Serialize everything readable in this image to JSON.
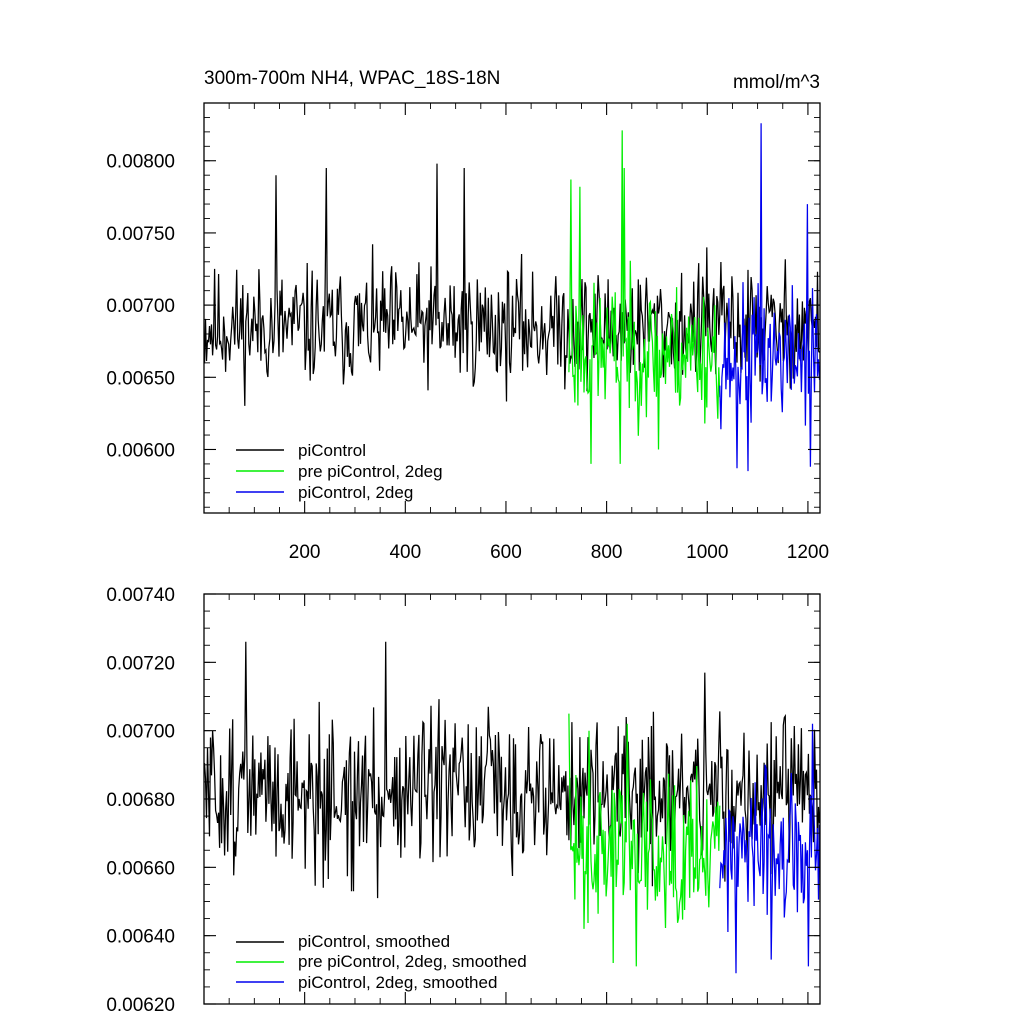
{
  "chart_data": [
    {
      "type": "line",
      "title": "300m-700m NH4, WPAC_18S-18N",
      "units": "mmol/m^3",
      "xlim": [
        0,
        1224
      ],
      "ylim": [
        0.00556,
        0.0084
      ],
      "x_ticks": [
        200,
        400,
        600,
        800,
        1000,
        1200
      ],
      "x_tick_labels": [
        "200",
        "400",
        "600",
        "800",
        "1000",
        "1200"
      ],
      "y_ticks": [
        0.006,
        0.0065,
        0.007,
        0.0075,
        0.008
      ],
      "y_tick_labels": [
        "0.00600",
        "0.00650",
        "0.00700",
        "0.00750",
        "0.00800"
      ],
      "legend": "bottom-left",
      "series": [
        {
          "name": "piControl",
          "color": "#000000",
          "x_range": [
            1,
            1224
          ],
          "mean": 0.00685,
          "amp": 0.00032,
          "seed": 11,
          "peaks": [
            [
              143,
              0.0079
            ],
            [
              243,
              0.00795
            ],
            [
              463,
              0.00798
            ],
            [
              518,
              0.00795
            ],
            [
              700,
              0.0072
            ],
            [
              1000,
              0.0074
            ]
          ]
        },
        {
          "name": "pre piControl, 2deg",
          "color": "#00ee00",
          "x_range": [
            725,
            1025
          ],
          "mean": 0.00668,
          "amp": 0.00036,
          "seed": 23,
          "peaks": [
            [
              730,
              0.00787
            ],
            [
              832,
              0.00821
            ],
            [
              836,
              0.00795
            ],
            [
              747,
              0.00782
            ],
            [
              770,
              0.0059
            ],
            [
              827,
              0.0059
            ],
            [
              903,
              0.006
            ]
          ]
        },
        {
          "name": "piControl, 2deg",
          "color": "#0000ee",
          "x_range": [
            1025,
            1224
          ],
          "mean": 0.00665,
          "amp": 0.00036,
          "seed": 37,
          "peaks": [
            [
              1108,
              0.00826
            ],
            [
              1200,
              0.0077
            ],
            [
              1060,
              0.00587
            ],
            [
              1082,
              0.00585
            ],
            [
              1205,
              0.00588
            ],
            [
              1048,
              0.0066
            ]
          ]
        }
      ]
    },
    {
      "type": "line",
      "xlim": [
        0,
        1224
      ],
      "ylim": [
        0.0062,
        0.0074
      ],
      "x_ticks": [
        200,
        400,
        600,
        800,
        1000,
        1200
      ],
      "y_ticks": [
        0.0062,
        0.0064,
        0.0066,
        0.0068,
        0.007,
        0.0072,
        0.0074
      ],
      "y_tick_labels": [
        "0.00620",
        "0.00640",
        "0.00660",
        "0.00680",
        "0.00700",
        "0.00720",
        "0.00740"
      ],
      "legend": "bottom-left",
      "series": [
        {
          "name": "piControl, smoothed",
          "color": "#000000",
          "x_range": [
            1,
            1224
          ],
          "mean": 0.00682,
          "amp": 0.00017,
          "seed": 51,
          "peaks": [
            [
              84,
              0.00726
            ],
            [
              361,
              0.00726
            ],
            [
              996,
              0.00717
            ],
            [
              237,
              0.00654
            ],
            [
              294,
              0.00653
            ],
            [
              298,
              0.00653
            ],
            [
              346,
              0.00651
            ],
            [
              565,
              0.00707
            ]
          ]
        },
        {
          "name": "pre piControl, 2deg, smoothed",
          "color": "#00ee00",
          "x_range": [
            725,
            1025
          ],
          "mean": 0.00667,
          "amp": 0.00018,
          "seed": 63,
          "peaks": [
            [
              725,
              0.00705
            ],
            [
              813,
              0.00632
            ],
            [
              860,
              0.00631
            ],
            [
              766,
              0.007
            ],
            [
              842,
              0.00702
            ]
          ]
        },
        {
          "name": "piControl, 2deg, smoothed",
          "color": "#0000ee",
          "x_range": [
            1025,
            1224
          ],
          "mean": 0.00663,
          "amp": 0.00017,
          "seed": 77,
          "peaks": [
            [
              1209,
              0.00702
            ],
            [
              1058,
              0.00629
            ],
            [
              1128,
              0.00633
            ],
            [
              1201,
              0.00631
            ],
            [
              1115,
              0.0069
            ]
          ]
        }
      ]
    }
  ]
}
